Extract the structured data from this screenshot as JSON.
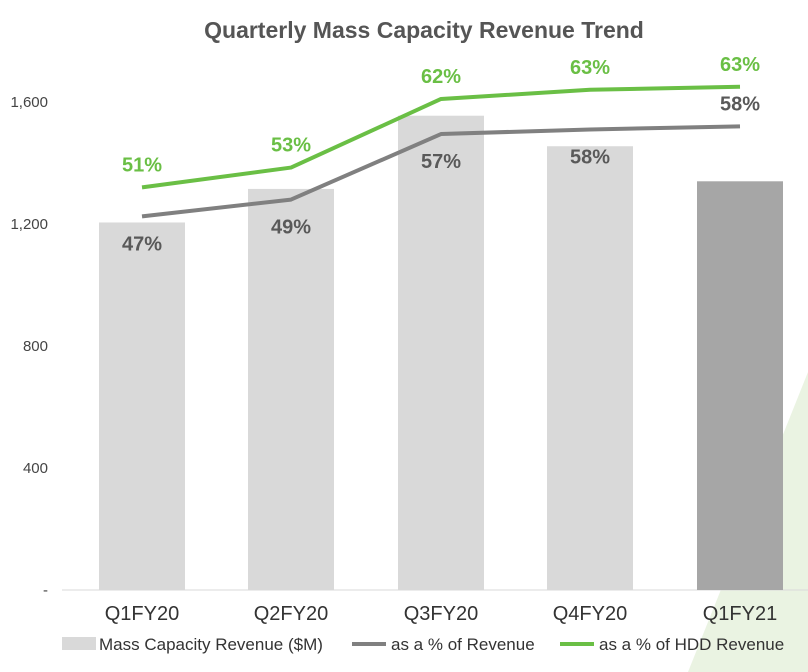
{
  "chart_data": {
    "type": "bar",
    "title": "Quarterly Mass Capacity Revenue Trend",
    "categories": [
      "Q1FY20",
      "Q2FY20",
      "Q3FY20",
      "Q4FY20",
      "Q1FY21"
    ],
    "ylim": [
      0,
      1800
    ],
    "yticks": [
      0,
      400,
      800,
      1200,
      1600
    ],
    "ytick_labels": [
      "-",
      "400",
      "800",
      "1,200",
      "1,600"
    ],
    "bar_series": {
      "name": "Mass Capacity Revenue ($M)",
      "values": [
        1205,
        1315,
        1555,
        1455,
        1340
      ],
      "colors": [
        "#d9d9d9",
        "#d9d9d9",
        "#d9d9d9",
        "#d9d9d9",
        "#a6a6a6"
      ]
    },
    "line_series": [
      {
        "name": "as a % of Revenue",
        "color": "#808080",
        "label_color": "#595959",
        "plot_values": [
          1225,
          1280,
          1495,
          1510,
          1520
        ],
        "labels": [
          "47%",
          "49%",
          "57%",
          "58%",
          "58%"
        ],
        "label_position": [
          "below",
          "below",
          "below",
          "below",
          "above"
        ]
      },
      {
        "name": "as a % of HDD Revenue",
        "color": "#6abf45",
        "label_color": "#6abf45",
        "plot_values": [
          1320,
          1385,
          1610,
          1640,
          1650
        ],
        "labels": [
          "51%",
          "53%",
          "62%",
          "63%",
          "63%"
        ],
        "label_position": [
          "above",
          "above",
          "above",
          "above",
          "above"
        ]
      }
    ],
    "grid": false,
    "legend_position": "bottom"
  }
}
